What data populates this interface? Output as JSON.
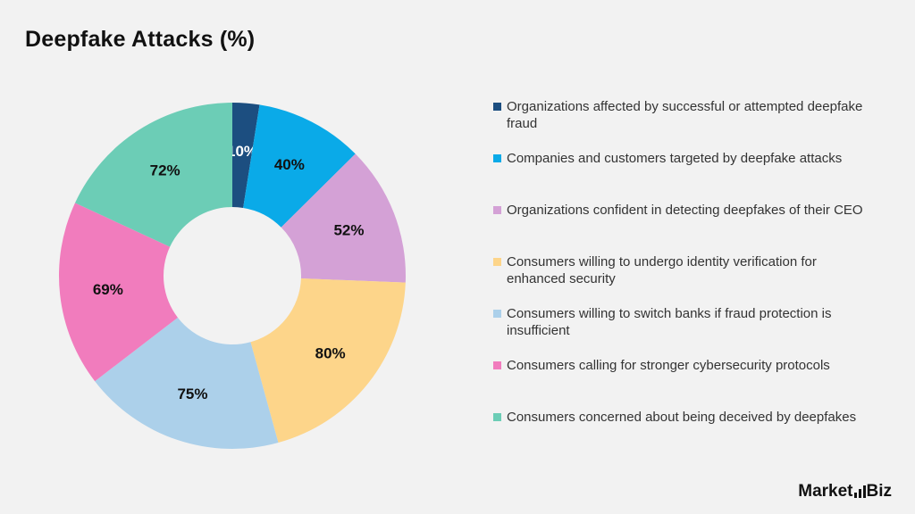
{
  "page": {
    "title": "Deepfake Attacks (%)"
  },
  "brand": {
    "left": "Market",
    "right": "Biz"
  },
  "chart_data": {
    "type": "pie",
    "donut": true,
    "title": "Deepfake Attacks (%)",
    "legend_position": "right",
    "categories": [
      "Organizations affected by successful or attempted deepfake fraud",
      "Companies and customers targeted by deepfake attacks",
      "Organizations confident in detecting deepfakes of their CEO",
      "Consumers willing to undergo identity verification for enhanced security",
      "Consumers willing to switch banks if fraud protection is insufficient",
      "Consumers calling for stronger cybersecurity protocols",
      "Consumers concerned about being deceived by deepfakes"
    ],
    "values": [
      10,
      40,
      52,
      80,
      75,
      69,
      72
    ],
    "labels": [
      "10%",
      "40%",
      "52%",
      "80%",
      "75%",
      "69%",
      "72%"
    ],
    "colors": [
      "#1c4e80",
      "#0aaae8",
      "#d4a1d6",
      "#fdd58a",
      "#acd0ea",
      "#f17cbd",
      "#6ccdb6"
    ],
    "label_colors": [
      "#ffffff",
      "#111111",
      "#111111",
      "#111111",
      "#111111",
      "#111111",
      "#111111"
    ]
  }
}
